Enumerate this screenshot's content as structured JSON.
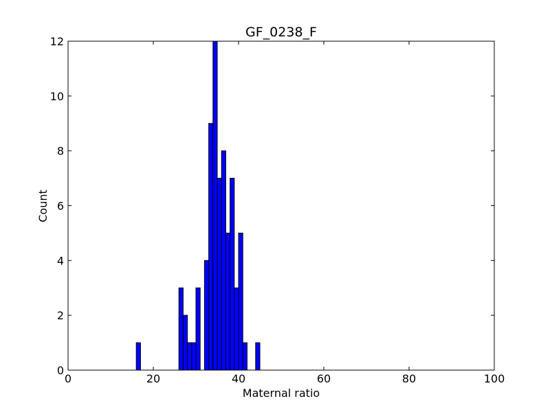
{
  "chart_data": {
    "type": "histogram",
    "title": "GF_0238_F",
    "x_label": "Maternal ratio",
    "y_label": "Count",
    "bins": [
      16,
      17,
      18,
      19,
      20,
      21,
      22,
      23,
      24,
      25,
      26,
      27,
      28,
      29,
      30,
      31,
      32,
      33,
      34,
      35,
      36,
      37,
      38,
      39,
      40,
      41,
      42,
      43,
      44,
      45
    ],
    "counts": [
      1,
      0,
      0,
      0,
      0,
      0,
      0,
      0,
      0,
      0,
      3,
      2,
      1,
      1,
      3,
      0,
      4,
      9,
      12,
      7,
      8,
      5,
      7,
      3,
      5,
      1,
      0,
      0,
      1
    ],
    "color": "#0000ff",
    "edgecolor": "#000000",
    "xlim": [
      0,
      100
    ],
    "xticks": [
      0,
      20,
      40,
      60,
      80,
      100
    ],
    "ylim": [
      0,
      12
    ],
    "yticks": [
      0,
      2,
      4,
      6,
      8,
      10,
      12
    ],
    "grid": false
  }
}
